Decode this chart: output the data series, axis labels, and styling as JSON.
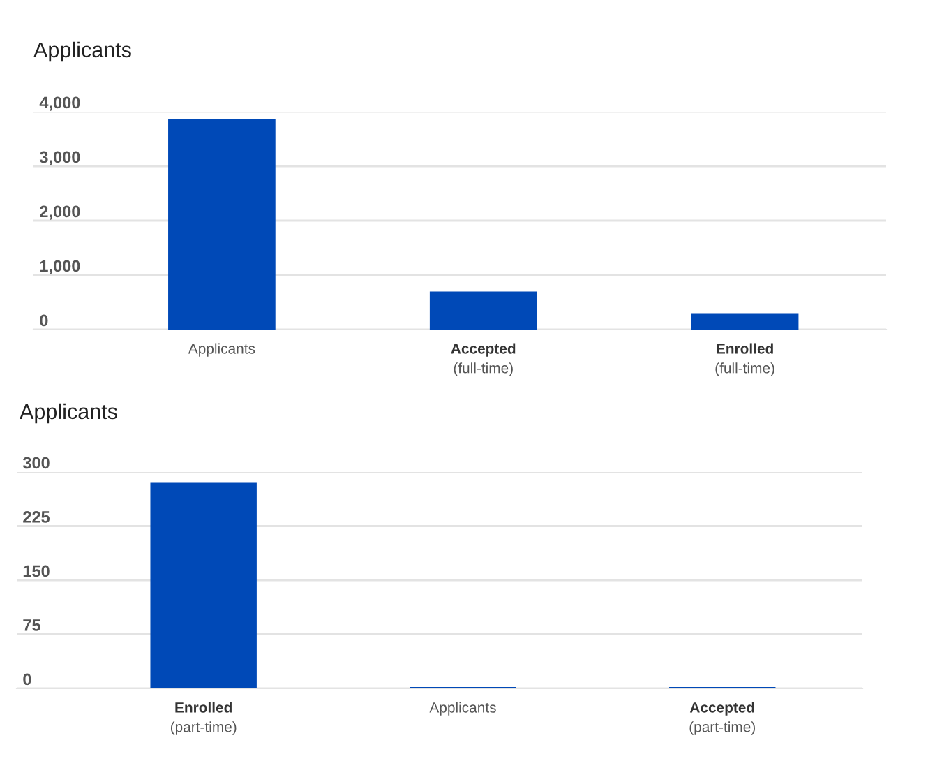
{
  "chart_data": [
    {
      "type": "bar",
      "title": "Applicants",
      "categories": [
        "Applicants",
        "Accepted\n(full-time)",
        "Enrolled\n(full-time)"
      ],
      "values": [
        3870,
        700,
        290
      ],
      "color": "#0049b7",
      "ylim": [
        0,
        4000
      ],
      "yticks": [
        0,
        {
          "value": 1000,
          "label": "1,000"
        },
        {
          "value": 2000,
          "label": "2,000"
        },
        {
          "value": 3000,
          "label": "3,000"
        },
        {
          "value": 4000,
          "label": "4,000"
        }
      ],
      "grid": "y"
    },
    {
      "type": "bar",
      "title": "Applicants",
      "categories": [
        "Enrolled\n(part-time)",
        "Applicants",
        "Accepted\n(part-time)"
      ],
      "values": [
        285,
        2,
        2
      ],
      "color": "#0049b7",
      "ylim": [
        0,
        300
      ],
      "yticks": [
        0,
        75,
        150,
        225,
        300
      ],
      "grid": "y"
    }
  ]
}
